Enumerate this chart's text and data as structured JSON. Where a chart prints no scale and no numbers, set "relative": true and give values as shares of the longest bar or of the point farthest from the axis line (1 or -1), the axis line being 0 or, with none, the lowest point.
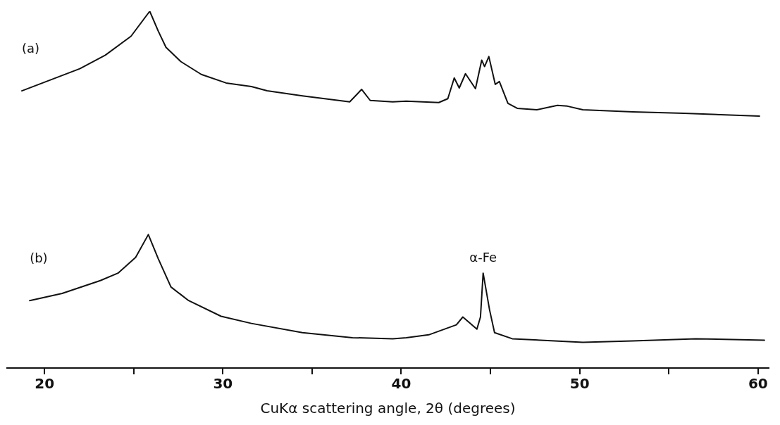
{
  "chart_data": {
    "type": "line",
    "relative": true,
    "xlabel": "CuKα scattering angle, 2θ (degrees)",
    "xlim": [
      17.9,
      60.6
    ],
    "xticks": [
      20,
      {
        "value": 25,
        "label": null
      },
      30,
      {
        "value": 35,
        "label": null
      },
      40,
      {
        "value": 45,
        "label": null
      },
      50,
      {
        "value": 55,
        "label": null
      },
      60
    ],
    "grid": false,
    "legend": false,
    "marker": "none",
    "line_style": "solid",
    "annotations": [
      {
        "text": "α-Fe",
        "x": 44.59,
        "y": 0.266
      }
    ],
    "series": [
      {
        "name": "(a)",
        "color": "#111111",
        "x": [
          18.73,
          21.98,
          23.41,
          24.85,
          25.9,
          26.38,
          26.81,
          27.64,
          28.79,
          30.18,
          31.6,
          32.48,
          34.46,
          37.11,
          37.78,
          38.26,
          39.52,
          40.28,
          42.1,
          42.61,
          42.97,
          43.25,
          43.6,
          44.16,
          44.51,
          44.67,
          44.91,
          45.27,
          45.5,
          45.98,
          46.5,
          47.6,
          48.75,
          49.31,
          50.18,
          52.99,
          55.84,
          60.08
        ],
        "values": [
          0.777,
          0.839,
          0.877,
          0.93,
          1,
          0.944,
          0.899,
          0.859,
          0.823,
          0.799,
          0.789,
          0.777,
          0.763,
          0.746,
          0.781,
          0.75,
          0.746,
          0.748,
          0.744,
          0.755,
          0.813,
          0.785,
          0.825,
          0.783,
          0.863,
          0.845,
          0.873,
          0.795,
          0.803,
          0.742,
          0.728,
          0.724,
          0.736,
          0.734,
          0.724,
          0.718,
          0.714,
          0.706
        ]
      },
      {
        "name": "(b)",
        "color": "#111111",
        "x": [
          19.17,
          20.99,
          23.13,
          24.12,
          25.11,
          25.82,
          26.38,
          27.09,
          28.08,
          29.9,
          31.6,
          34.46,
          37.27,
          39.52,
          40.28,
          41.54,
          43.09,
          43.45,
          44.24,
          44.44,
          44.59,
          44.95,
          45.23,
          46.22,
          50.18,
          52.99,
          56.51,
          60.36
        ],
        "values": [
          0.189,
          0.209,
          0.245,
          0.266,
          0.31,
          0.374,
          0.306,
          0.227,
          0.189,
          0.145,
          0.125,
          0.099,
          0.085,
          0.082,
          0.085,
          0.093,
          0.121,
          0.143,
          0.109,
          0.143,
          0.266,
          0.163,
          0.099,
          0.082,
          0.072,
          0.076,
          0.082,
          0.078
        ]
      }
    ]
  }
}
